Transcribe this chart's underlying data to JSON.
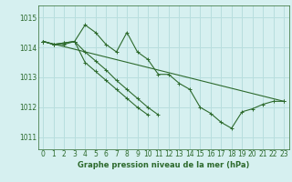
{
  "title": "",
  "xlabel": "Graphe pression niveau de la mer (hPa)",
  "background_color": "#d6f0f0",
  "grid_color": "#b8dede",
  "line_color": "#2d6a2d",
  "ylim": [
    1010.6,
    1015.4
  ],
  "xlim": [
    -0.5,
    23.5
  ],
  "yticks": [
    1011,
    1012,
    1013,
    1014,
    1015
  ],
  "xticks": [
    0,
    1,
    2,
    3,
    4,
    5,
    6,
    7,
    8,
    9,
    10,
    11,
    12,
    13,
    14,
    15,
    16,
    17,
    18,
    19,
    20,
    21,
    22,
    23
  ],
  "series": [
    [
      1014.2,
      1014.1,
      1014.1,
      1014.2,
      1014.75,
      1014.5,
      1014.1,
      1013.85,
      1014.5,
      1013.85,
      1013.6,
      1013.1,
      1013.1,
      1012.8,
      1012.6,
      1012.0,
      1011.8,
      1011.5,
      1011.3,
      1011.85,
      1011.95,
      1012.1,
      1012.2,
      1012.2
    ],
    [
      1014.2,
      1014.1,
      1014.15,
      1014.2,
      1013.85,
      1013.55,
      1013.25,
      1012.9,
      1012.6,
      1012.3,
      1012.0,
      1011.75,
      null,
      null,
      null,
      null,
      null,
      null,
      null,
      null,
      null,
      null,
      null,
      null
    ],
    [
      1014.2,
      1014.1,
      1014.15,
      1014.2,
      1013.5,
      1013.2,
      1012.9,
      1012.6,
      1012.3,
      1012.0,
      1011.75,
      null,
      null,
      null,
      null,
      null,
      null,
      null,
      null,
      null,
      null,
      null,
      null,
      null
    ],
    [
      1014.2,
      null,
      null,
      null,
      null,
      null,
      null,
      null,
      null,
      null,
      null,
      null,
      null,
      null,
      null,
      null,
      null,
      null,
      null,
      null,
      null,
      null,
      null,
      1012.2
    ]
  ]
}
